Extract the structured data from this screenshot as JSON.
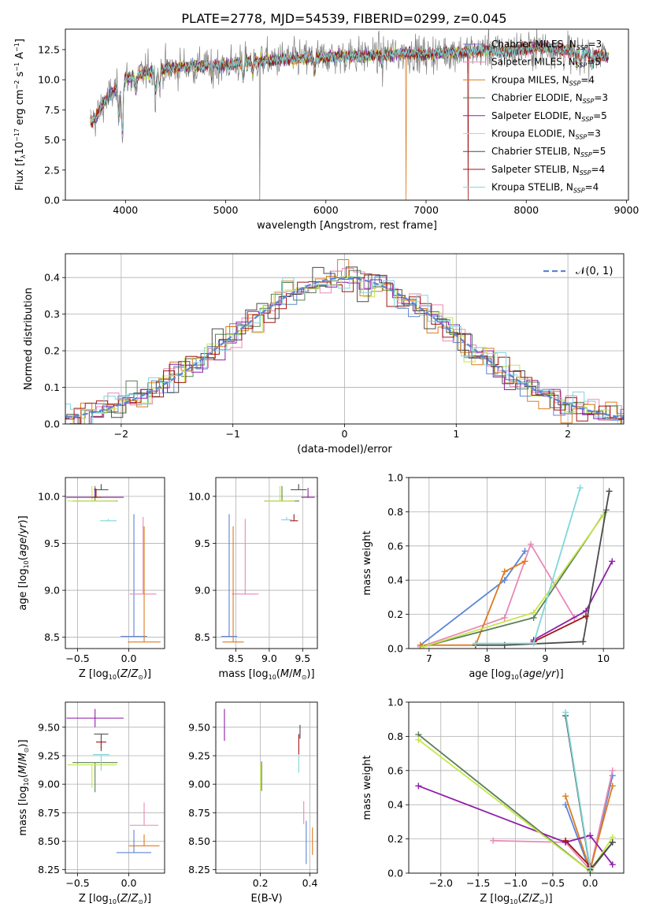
{
  "figure_title": "PLATE=2778, MJD=54539, FIBERID=0299, z=0.045",
  "colors": {
    "Chabrier MILES": "#5b85d6",
    "Salpeter MILES": "#e889b6",
    "Kroupa MILES": "#dd7a1f",
    "Chabrier ELODIE": "#5a7f57",
    "Salpeter ELODIE": "#8e1fa8",
    "Kroupa ELODIE": "#c7e64a",
    "Chabrier STELIB": "#4a4a4a",
    "Salpeter STELIB": "#a11515",
    "Kroupa STELIB": "#7fd6d9",
    "normal": "#5b85d6",
    "data": "#808080"
  },
  "chart_data": [
    {
      "id": "spectrum",
      "type": "line",
      "xlabel": "wavelength [Angstrom, rest frame]",
      "ylabel": "Flux [f_λ10^-17 erg cm^-2 s^-1 A^-1]",
      "xlim": [
        3400,
        9020
      ],
      "ylim": [
        0,
        14.2
      ],
      "xticks": [
        4000,
        5000,
        6000,
        7000,
        8000,
        9000
      ],
      "yticks": [
        0.0,
        2.5,
        5.0,
        7.5,
        10.0,
        12.5
      ],
      "grid": false,
      "legend": "right",
      "continuum": {
        "x": [
          3650,
          3700,
          3800,
          3900,
          4000,
          4200,
          4400,
          4600,
          4800,
          5000,
          5200,
          5400,
          5600,
          5800,
          6000,
          6200,
          6400,
          6600,
          6800,
          7000,
          7200,
          7400,
          7600,
          7800,
          8000,
          8200,
          8400,
          8600,
          8820
        ],
        "y": [
          6.5,
          6.8,
          8.3,
          9.2,
          10.0,
          10.6,
          10.9,
          11.1,
          11.2,
          11.2,
          11.5,
          11.6,
          11.7,
          11.8,
          11.9,
          12.0,
          12.0,
          12.1,
          12.2,
          12.1,
          12.3,
          12.3,
          12.5,
          12.4,
          12.6,
          12.7,
          12.4,
          12.2,
          11.9
        ]
      },
      "features": [
        {
          "x": 3933,
          "depth": 2.5
        },
        {
          "x": 3968,
          "depth": 4.0
        },
        {
          "x": 4102,
          "depth": 1.2
        },
        {
          "x": 4300,
          "depth": 1.8
        },
        {
          "x": 4340,
          "depth": 1.5
        },
        {
          "x": 4861,
          "depth": 1.0
        },
        {
          "x": 5175,
          "depth": 1.4
        },
        {
          "x": 5270,
          "depth": 0.8
        },
        {
          "x": 5890,
          "depth": 1.0
        },
        {
          "x": 6563,
          "depth": 0.7
        },
        {
          "x": 8500,
          "depth": 0.9
        },
        {
          "x": 8542,
          "depth": 1.0
        },
        {
          "x": 8662,
          "depth": 0.9
        }
      ],
      "drops": [
        {
          "series": "data",
          "x": 5340
        },
        {
          "series": "Kroupa MILES",
          "x": 6800
        },
        {
          "series": "Salpeter STELIB",
          "x": 7420
        }
      ],
      "series": [
        {
          "name": "Chabrier MILES",
          "nssp": 3
        },
        {
          "name": "Salpeter MILES",
          "nssp": 5
        },
        {
          "name": "Kroupa MILES",
          "nssp": 4
        },
        {
          "name": "Chabrier ELODIE",
          "nssp": 3
        },
        {
          "name": "Salpeter ELODIE",
          "nssp": 5
        },
        {
          "name": "Kroupa ELODIE",
          "nssp": 3
        },
        {
          "name": "Chabrier STELIB",
          "nssp": 5
        },
        {
          "name": "Salpeter STELIB",
          "nssp": 4
        },
        {
          "name": "Kroupa STELIB",
          "nssp": 4
        }
      ]
    },
    {
      "id": "residuals",
      "type": "step-histogram",
      "xlabel": "(data-model)/error",
      "ylabel": "Normed distribution",
      "xlim": [
        -2.5,
        2.5
      ],
      "ylim": [
        0,
        0.465
      ],
      "xticks": [
        -2,
        -1,
        0,
        1,
        2
      ],
      "yticks": [
        0.0,
        0.1,
        0.2,
        0.3,
        0.4
      ],
      "grid": true,
      "bin_width": 0.1,
      "legend": "top-right",
      "normal_label": "𝒩(0, 1)"
    },
    {
      "id": "age-vs-Z",
      "type": "errorbar",
      "xlabel": "Z [log10(Z/Z⊙)]",
      "ylabel": "age  [log10(age/yr)]",
      "xlim": [
        -0.62,
        0.35
      ],
      "ylim": [
        8.38,
        10.2
      ],
      "xticks": [
        -0.5,
        0.0
      ],
      "yticks": [
        8.5,
        9.0,
        9.5,
        10.0
      ],
      "grid": true,
      "points": [
        {
          "series": "Chabrier MILES",
          "x": 0.05,
          "y": 8.51,
          "xerr": 0.13,
          "yerr": [
            0,
            1.3
          ]
        },
        {
          "series": "Salpeter MILES",
          "x": 0.14,
          "y": 8.96,
          "xerr": 0.13,
          "yerr": [
            0,
            0.82
          ]
        },
        {
          "series": "Kroupa MILES",
          "x": 0.15,
          "y": 8.45,
          "xerr": 0.16,
          "yerr": [
            0,
            1.23
          ]
        },
        {
          "series": "Chabrier ELODIE",
          "x": -0.33,
          "y": 9.95,
          "xerr": 0.22,
          "yerr": [
            0,
            0.16
          ]
        },
        {
          "series": "Salpeter ELODIE",
          "x": -0.33,
          "y": 9.99,
          "xerr": 0.28,
          "yerr": [
            0,
            0.1
          ]
        },
        {
          "series": "Kroupa ELODIE",
          "x": -0.36,
          "y": 9.95,
          "xerr": 0.24,
          "yerr": [
            0,
            0.16
          ]
        },
        {
          "series": "Chabrier STELIB",
          "x": -0.27,
          "y": 10.07,
          "xerr": 0.07,
          "yerr": [
            0,
            0.06
          ]
        },
        {
          "series": "Salpeter STELIB",
          "x": -0.32,
          "y": 9.99,
          "xerr": 0.05,
          "yerr": [
            0,
            0.09
          ]
        },
        {
          "series": "Kroupa STELIB",
          "x": -0.2,
          "y": 9.74,
          "xerr": 0.08,
          "yerr": [
            0,
            0.02
          ]
        }
      ]
    },
    {
      "id": "age-vs-mass",
      "type": "errorbar",
      "xlabel": "mass [log10(M/M⊙)]",
      "ylabel": "",
      "xlim": [
        8.2,
        9.72
      ],
      "ylim": [
        8.38,
        10.2
      ],
      "xticks": [
        8.5,
        9.0,
        9.5
      ],
      "yticks": [
        8.5,
        9.0,
        9.5,
        10.0
      ],
      "grid": true,
      "points": [
        {
          "series": "Chabrier MILES",
          "x": 8.4,
          "y": 8.51,
          "xerr": 0.12,
          "yerr": [
            0,
            1.3
          ]
        },
        {
          "series": "Salpeter MILES",
          "x": 8.64,
          "y": 8.96,
          "xerr": 0.2,
          "yerr": [
            0,
            0.8
          ]
        },
        {
          "series": "Kroupa MILES",
          "x": 8.46,
          "y": 8.45,
          "xerr": 0.16,
          "yerr": [
            0,
            1.23
          ]
        },
        {
          "series": "Chabrier ELODIE",
          "x": 9.19,
          "y": 9.95,
          "xerr": 0.26,
          "yerr": [
            0,
            0.16
          ]
        },
        {
          "series": "Salpeter ELODIE",
          "x": 9.58,
          "y": 9.99,
          "xerr": 0.1,
          "yerr": [
            0,
            0.1
          ]
        },
        {
          "series": "Kroupa ELODIE",
          "x": 9.16,
          "y": 9.95,
          "xerr": 0.22,
          "yerr": [
            0,
            0.16
          ]
        },
        {
          "series": "Chabrier STELIB",
          "x": 9.44,
          "y": 10.07,
          "xerr": 0.12,
          "yerr": [
            0,
            0.06
          ]
        },
        {
          "series": "Salpeter STELIB",
          "x": 9.37,
          "y": 9.74,
          "xerr": 0.06,
          "yerr": [
            0,
            0.07
          ]
        },
        {
          "series": "Kroupa STELIB",
          "x": 9.26,
          "y": 9.75,
          "xerr": 0.08,
          "yerr": [
            0,
            0.03
          ]
        }
      ]
    },
    {
      "id": "weight-vs-age",
      "type": "line",
      "xlabel": "age  [log10(age/yr)]",
      "ylabel": "mass weight",
      "xlim": [
        6.65,
        10.35
      ],
      "ylim": [
        0,
        1.0
      ],
      "xticks": [
        7,
        8,
        9,
        10
      ],
      "yticks": [
        0.0,
        0.2,
        0.4,
        0.6,
        0.8,
        1.0
      ],
      "grid": true,
      "series": [
        {
          "name": "Chabrier MILES",
          "x": [
            6.85,
            8.3,
            8.65
          ],
          "y": [
            0.02,
            0.4,
            0.57
          ]
        },
        {
          "name": "Salpeter MILES",
          "x": [
            6.85,
            8.3,
            8.75,
            9.5
          ],
          "y": [
            0.01,
            0.18,
            0.61,
            0.18
          ]
        },
        {
          "name": "Kroupa MILES",
          "x": [
            6.85,
            7.8,
            8.3,
            8.65
          ],
          "y": [
            0.02,
            0.02,
            0.45,
            0.51
          ]
        },
        {
          "name": "Chabrier ELODIE",
          "x": [
            6.9,
            8.8,
            10.05
          ],
          "y": [
            0.01,
            0.18,
            0.81
          ]
        },
        {
          "name": "Salpeter ELODIE",
          "x": [
            8.8,
            9.7,
            10.15
          ],
          "y": [
            0.05,
            0.22,
            0.51
          ]
        },
        {
          "name": "Kroupa ELODIE",
          "x": [
            6.9,
            8.8,
            10.0
          ],
          "y": [
            0.01,
            0.21,
            0.78
          ]
        },
        {
          "name": "Chabrier STELIB",
          "x": [
            7.8,
            8.3,
            9.65,
            10.1
          ],
          "y": [
            0.02,
            0.02,
            0.04,
            0.92
          ]
        },
        {
          "name": "Salpeter STELIB",
          "x": [
            8.8,
            9.7
          ],
          "y": [
            0.04,
            0.19
          ]
        },
        {
          "name": "Kroupa STELIB",
          "x": [
            7.8,
            8.8,
            9.6
          ],
          "y": [
            0.03,
            0.03,
            0.94
          ]
        }
      ]
    },
    {
      "id": "mass-vs-Z",
      "type": "errorbar",
      "xlabel": "Z [log10(Z/Z⊙)]",
      "ylabel": "mass [log10(M/M⊙)]",
      "xlim": [
        -0.62,
        0.35
      ],
      "ylim": [
        8.22,
        9.72
      ],
      "xticks": [
        -0.5,
        0.0
      ],
      "yticks": [
        8.25,
        8.5,
        8.75,
        9.0,
        9.25,
        9.5
      ],
      "grid": true,
      "points": [
        {
          "series": "Chabrier MILES",
          "x": 0.05,
          "y": 8.4,
          "xerr": 0.17,
          "yerr": [
            0,
            0.2
          ]
        },
        {
          "series": "Salpeter MILES",
          "x": 0.15,
          "y": 8.64,
          "xerr": 0.14,
          "yerr": [
            0,
            0.2
          ]
        },
        {
          "series": "Kroupa MILES",
          "x": 0.15,
          "y": 8.46,
          "xerr": 0.15,
          "yerr": [
            0,
            0.1
          ]
        },
        {
          "series": "Chabrier ELODIE",
          "x": -0.33,
          "y": 9.19,
          "xerr": 0.22,
          "yerr": [
            0.26,
            0
          ]
        },
        {
          "series": "Salpeter ELODIE",
          "x": -0.33,
          "y": 9.58,
          "xerr": 0.28,
          "yerr": [
            0.08,
            0.08
          ]
        },
        {
          "series": "Kroupa ELODIE",
          "x": -0.36,
          "y": 9.17,
          "xerr": 0.24,
          "yerr": [
            0.2,
            0
          ]
        },
        {
          "series": "Chabrier STELIB",
          "x": -0.27,
          "y": 9.44,
          "xerr": 0.07,
          "yerr": [
            0.15,
            0
          ]
        },
        {
          "series": "Salpeter STELIB",
          "x": -0.27,
          "y": 9.37,
          "xerr": 0.05,
          "yerr": [
            0.06,
            0
          ]
        },
        {
          "series": "Kroupa STELIB",
          "x": -0.27,
          "y": 9.26,
          "xerr": 0.08,
          "yerr": [
            0.14,
            0
          ]
        }
      ]
    },
    {
      "id": "mass-vs-EBV",
      "type": "errorbar",
      "xlabel": "E(B-V)",
      "ylabel": "",
      "xlim": [
        0.02,
        0.43
      ],
      "ylim": [
        8.22,
        9.72
      ],
      "xticks": [
        0.2,
        0.4
      ],
      "yticks": [
        8.25,
        8.5,
        8.75,
        9.0,
        9.25,
        9.5
      ],
      "grid": true,
      "points": [
        {
          "series": "Chabrier MILES",
          "x": 0.385,
          "y": 8.48,
          "xerr": 0,
          "yerr": [
            0.18,
            0.2
          ]
        },
        {
          "series": "Salpeter MILES",
          "x": 0.375,
          "y": 8.65,
          "xerr": 0,
          "yerr": [
            0,
            0.2
          ]
        },
        {
          "series": "Kroupa MILES",
          "x": 0.41,
          "y": 8.5,
          "xerr": 0,
          "yerr": [
            0.12,
            0.12
          ]
        },
        {
          "series": "Chabrier ELODIE",
          "x": 0.205,
          "y": 9.2,
          "xerr": 0,
          "yerr": [
            0.26,
            0
          ]
        },
        {
          "series": "Salpeter ELODIE",
          "x": 0.055,
          "y": 9.52,
          "xerr": 0,
          "yerr": [
            0.14,
            0.14
          ]
        },
        {
          "series": "Kroupa ELODIE",
          "x": 0.2,
          "y": 9.18,
          "xerr": 0,
          "yerr": [
            0.24,
            0
          ]
        },
        {
          "series": "Chabrier STELIB",
          "x": 0.36,
          "y": 9.4,
          "xerr": 0,
          "yerr": [
            0,
            0.12
          ]
        },
        {
          "series": "Salpeter STELIB",
          "x": 0.355,
          "y": 9.36,
          "xerr": 0,
          "yerr": [
            0.1,
            0.08
          ]
        },
        {
          "series": "Kroupa STELIB",
          "x": 0.355,
          "y": 9.2,
          "xerr": 0,
          "yerr": [
            0.1,
            0.05
          ]
        }
      ]
    },
    {
      "id": "weight-vs-Z",
      "type": "line",
      "xlabel": "Z [log10(Z/Z⊙)]",
      "ylabel": "mass weight",
      "xlim": [
        -2.43,
        0.45
      ],
      "ylim": [
        0,
        1.0
      ],
      "xticks": [
        -2.0,
        -1.5,
        -1.0,
        -0.5,
        0.0
      ],
      "yticks": [
        0.0,
        0.2,
        0.4,
        0.6,
        0.8,
        1.0
      ],
      "grid": true,
      "series": [
        {
          "name": "Chabrier MILES",
          "x": [
            -0.33,
            0.0,
            0.3
          ],
          "y": [
            0.4,
            0.01,
            0.57
          ]
        },
        {
          "name": "Salpeter MILES",
          "x": [
            -1.3,
            -0.33,
            0.0,
            0.3
          ],
          "y": [
            0.19,
            0.18,
            0.02,
            0.6
          ]
        },
        {
          "name": "Kroupa MILES",
          "x": [
            -0.33,
            0.0,
            0.3
          ],
          "y": [
            0.45,
            0.02,
            0.51
          ]
        },
        {
          "name": "Chabrier ELODIE",
          "x": [
            -2.3,
            0.0,
            0.3
          ],
          "y": [
            0.81,
            0.01,
            0.18
          ]
        },
        {
          "name": "Salpeter ELODIE",
          "x": [
            -2.3,
            -0.33,
            0.0,
            0.3
          ],
          "y": [
            0.51,
            0.18,
            0.22,
            0.05
          ]
        },
        {
          "name": "Kroupa ELODIE",
          "x": [
            -2.3,
            0.0,
            0.3
          ],
          "y": [
            0.78,
            0.01,
            0.21
          ]
        },
        {
          "name": "Chabrier STELIB",
          "x": [
            -0.33,
            0.0,
            0.3
          ],
          "y": [
            0.92,
            0.02,
            0.18
          ]
        },
        {
          "name": "Salpeter STELIB",
          "x": [
            -0.33,
            0.0
          ],
          "y": [
            0.19,
            0.04
          ]
        },
        {
          "name": "Kroupa STELIB",
          "x": [
            -0.33,
            0.0
          ],
          "y": [
            0.94,
            0.03
          ]
        }
      ]
    }
  ]
}
